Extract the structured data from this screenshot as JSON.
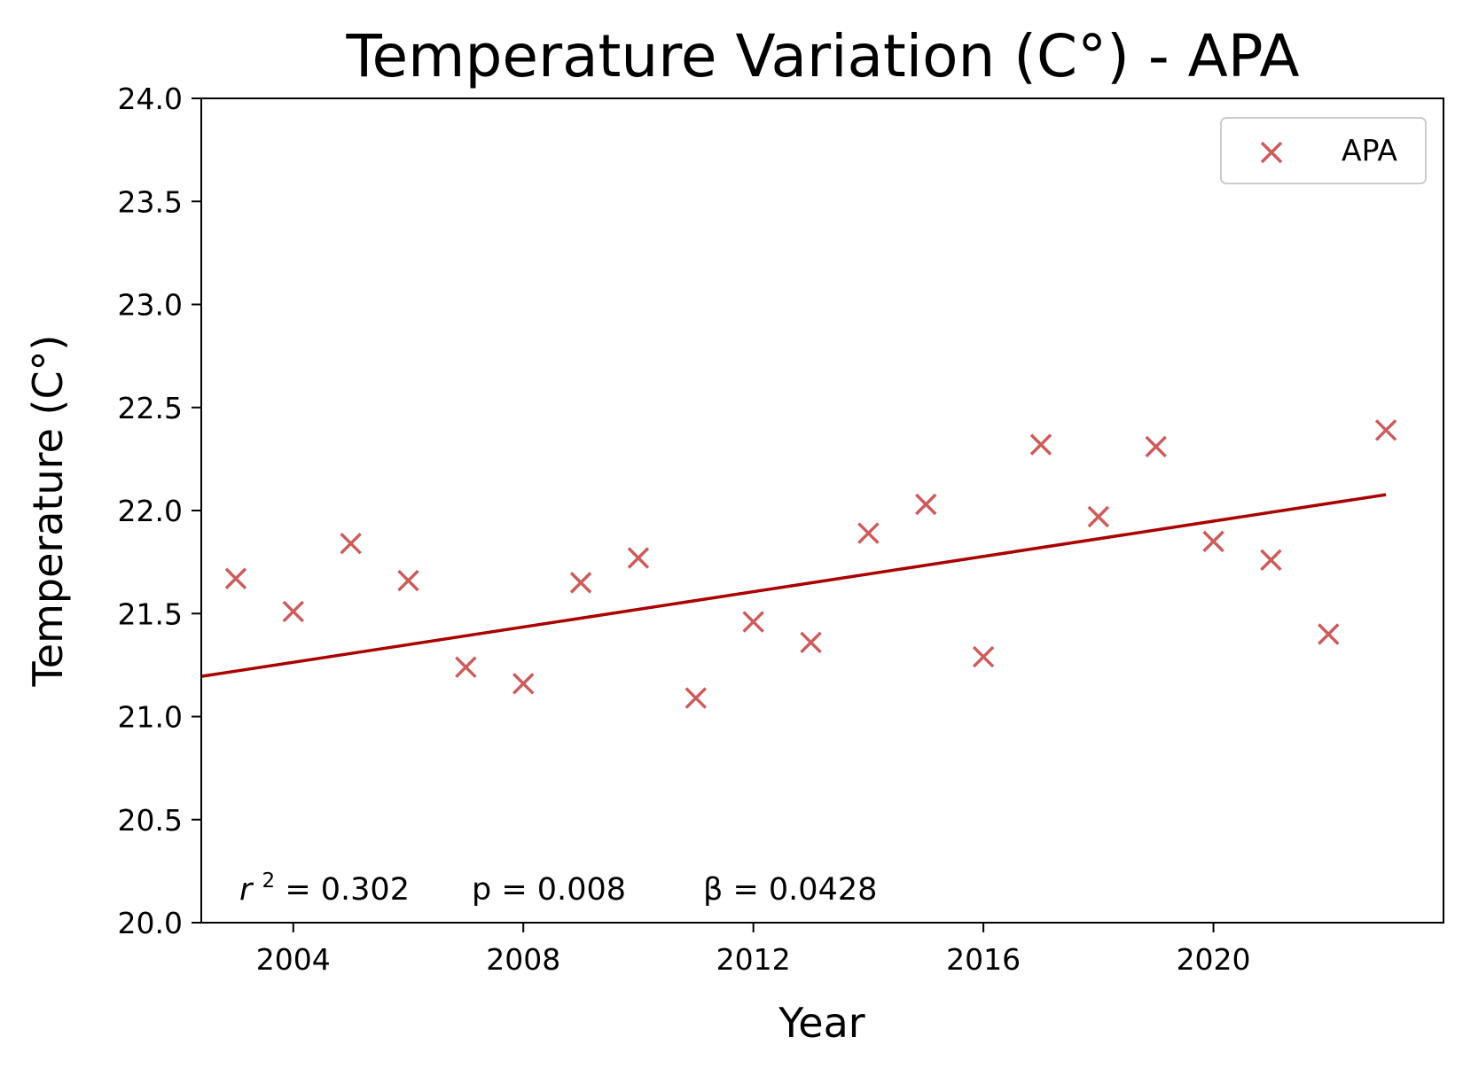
{
  "chart_data": {
    "type": "scatter",
    "title": "Temperature Variation (C°) - APA",
    "xlabel": "Year",
    "ylabel": "Temperature (C°)",
    "xlim": [
      2002.4,
      2024.0
    ],
    "ylim": [
      20.0,
      24.0
    ],
    "xticks": [
      2004,
      2008,
      2012,
      2016,
      2020
    ],
    "yticks": [
      "20.0",
      "20.5",
      "21.0",
      "21.5",
      "22.0",
      "22.5",
      "23.0",
      "23.5",
      "24.0"
    ],
    "grid": false,
    "legend_position": "top-right",
    "series": [
      {
        "name": "APA",
        "marker": "x",
        "color": "#cd5c5c",
        "x": [
          2003,
          2004,
          2005,
          2006,
          2007,
          2008,
          2009,
          2010,
          2011,
          2012,
          2013,
          2014,
          2015,
          2016,
          2017,
          2018,
          2019,
          2020,
          2021,
          2022,
          2023
        ],
        "y": [
          21.67,
          21.51,
          21.84,
          21.66,
          21.24,
          21.16,
          21.65,
          21.77,
          21.09,
          21.46,
          21.36,
          21.89,
          22.03,
          21.29,
          22.32,
          21.97,
          22.31,
          21.85,
          21.76,
          21.4,
          22.39
        ]
      }
    ],
    "trendline": {
      "color": "#aa0000",
      "x": [
        2002.4,
        2023.0
      ],
      "y": [
        21.195,
        22.077
      ]
    },
    "stats": {
      "r2_label": "r",
      "r2_exponent": "2",
      "r2_value": " = 0.302",
      "p": "p = 0.008",
      "beta": "β = 0.0428"
    }
  }
}
